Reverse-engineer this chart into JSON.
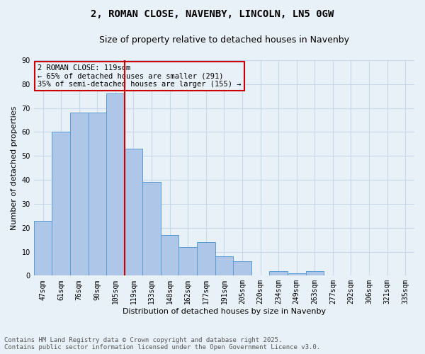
{
  "title_line1": "2, ROMAN CLOSE, NAVENBY, LINCOLN, LN5 0GW",
  "title_line2": "Size of property relative to detached houses in Navenby",
  "xlabel": "Distribution of detached houses by size in Navenby",
  "ylabel": "Number of detached properties",
  "categories": [
    "47sqm",
    "61sqm",
    "76sqm",
    "90sqm",
    "105sqm",
    "119sqm",
    "133sqm",
    "148sqm",
    "162sqm",
    "177sqm",
    "191sqm",
    "205sqm",
    "220sqm",
    "234sqm",
    "249sqm",
    "263sqm",
    "277sqm",
    "292sqm",
    "306sqm",
    "321sqm",
    "335sqm"
  ],
  "values": [
    23,
    60,
    68,
    68,
    76,
    53,
    39,
    17,
    12,
    14,
    8,
    6,
    0,
    2,
    1,
    2,
    0,
    0,
    0,
    0,
    0
  ],
  "bar_color": "#aec6e8",
  "bar_edge_color": "#5b9bd5",
  "vline_x_index": 5,
  "vline_color": "#cc0000",
  "annotation_text": "2 ROMAN CLOSE: 119sqm\n← 65% of detached houses are smaller (291)\n35% of semi-detached houses are larger (155) →",
  "annotation_box_color": "#cc0000",
  "ylim": [
    0,
    90
  ],
  "yticks": [
    0,
    10,
    20,
    30,
    40,
    50,
    60,
    70,
    80,
    90
  ],
  "grid_color": "#c8d8e8",
  "bg_color": "#e8f0f8",
  "footer_text": "Contains HM Land Registry data © Crown copyright and database right 2025.\nContains public sector information licensed under the Open Government Licence v3.0.",
  "title_fontsize": 10,
  "subtitle_fontsize": 9,
  "axis_label_fontsize": 8,
  "tick_fontsize": 7,
  "annotation_fontsize": 7.5,
  "footer_fontsize": 6.5
}
